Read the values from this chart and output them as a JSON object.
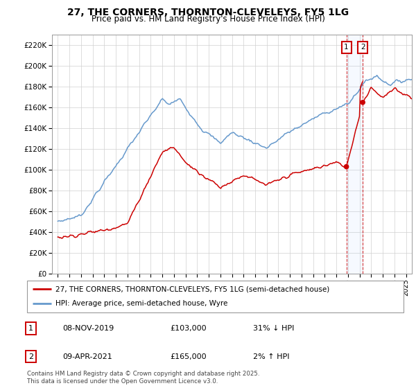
{
  "title": "27, THE CORNERS, THORNTON-CLEVELEYS, FY5 1LG",
  "subtitle": "Price paid vs. HM Land Registry's House Price Index (HPI)",
  "ylabel_ticks": [
    "£0",
    "£20K",
    "£40K",
    "£60K",
    "£80K",
    "£100K",
    "£120K",
    "£140K",
    "£160K",
    "£180K",
    "£200K",
    "£220K"
  ],
  "ytick_values": [
    0,
    20000,
    40000,
    60000,
    80000,
    100000,
    120000,
    140000,
    160000,
    180000,
    200000,
    220000
  ],
  "ylim": [
    0,
    230000
  ],
  "xlim_start": 1994.5,
  "xlim_end": 2025.5,
  "xtick_years": [
    1995,
    1996,
    1997,
    1998,
    1999,
    2000,
    2001,
    2002,
    2003,
    2004,
    2005,
    2006,
    2007,
    2008,
    2009,
    2010,
    2011,
    2012,
    2013,
    2014,
    2015,
    2016,
    2017,
    2018,
    2019,
    2020,
    2021,
    2022,
    2023,
    2024,
    2025
  ],
  "legend_line1": "27, THE CORNERS, THORNTON-CLEVELEYS, FY5 1LG (semi-detached house)",
  "legend_line2": "HPI: Average price, semi-detached house, Wyre",
  "line1_color": "#cc0000",
  "line2_color": "#6699cc",
  "annotation1_date": "08-NOV-2019",
  "annotation1_price": "£103,000",
  "annotation1_hpi": "31% ↓ HPI",
  "annotation2_date": "09-APR-2021",
  "annotation2_price": "£165,000",
  "annotation2_hpi": "2% ↑ HPI",
  "sale1_x": 2019.86,
  "sale1_y": 103000,
  "sale2_x": 2021.27,
  "sale2_y": 165000,
  "footer": "Contains HM Land Registry data © Crown copyright and database right 2025.\nThis data is licensed under the Open Government Licence v3.0."
}
